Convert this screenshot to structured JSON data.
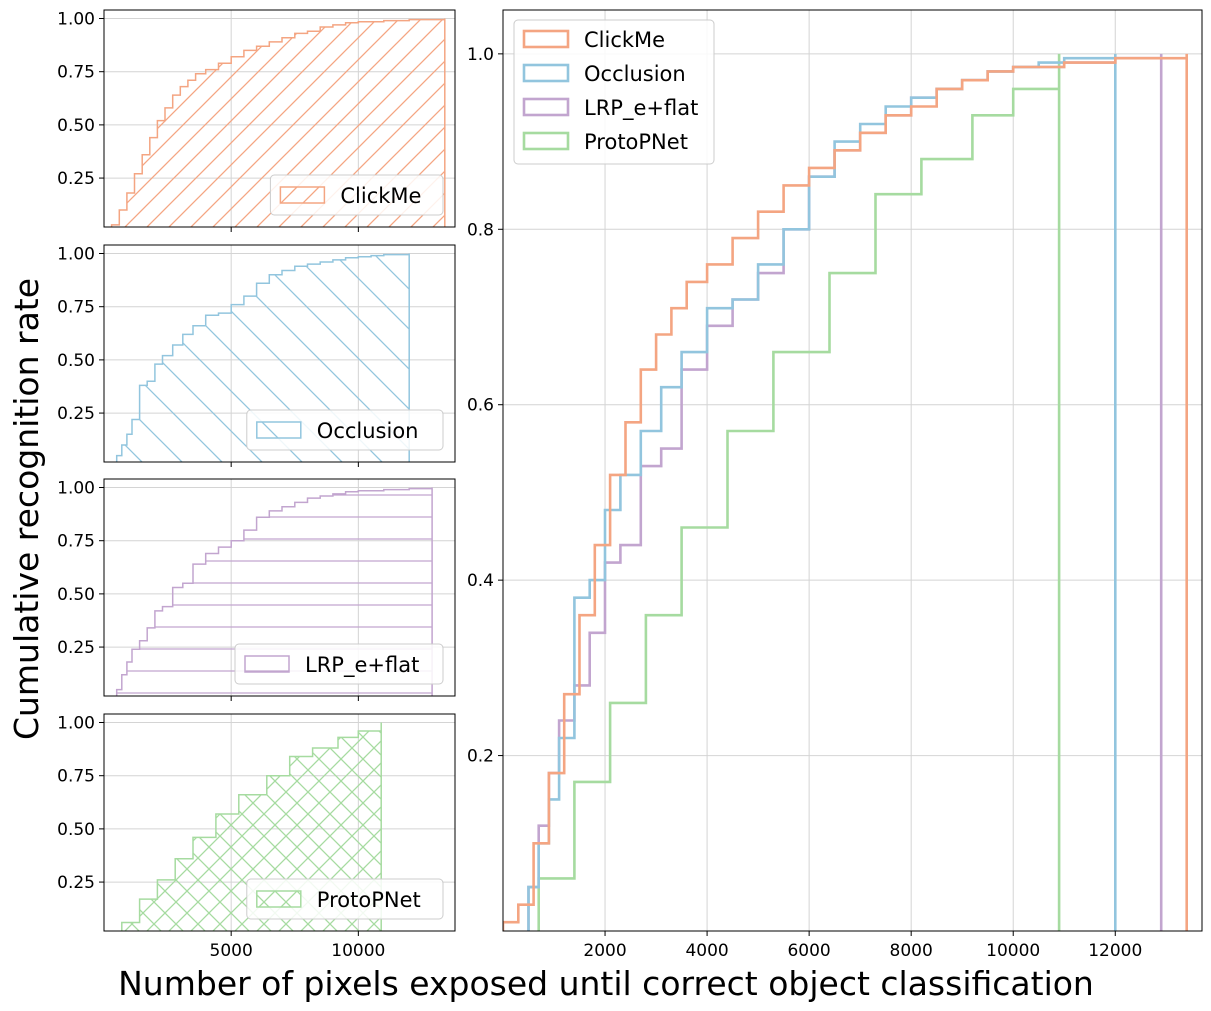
{
  "chart_data": {
    "type": "step",
    "ylabel": "Cumulative recognition rate",
    "xlabel": "Number of pixels exposed until correct object classification",
    "colors": {
      "ClickMe": "#F4A582",
      "Occlusion": "#92C5DE",
      "LRP_e+flat": "#C2A5CF",
      "ProtoPNet": "#A6DBA0"
    },
    "small_panels": {
      "xlim": [
        0,
        13800
      ],
      "ylim": [
        0.02,
        1.04
      ],
      "x_ticks": [
        5000,
        10000
      ],
      "x_tick_labels": [
        "5000",
        "10000"
      ],
      "y_ticks": [
        0.25,
        0.5,
        0.75,
        1.0
      ],
      "y_tick_labels": [
        "0.25",
        "0.50",
        "0.75",
        "1.00"
      ],
      "legend_position": "lower-right"
    },
    "main_panel": {
      "xlim": [
        0,
        13700
      ],
      "ylim": [
        0.0,
        1.05
      ],
      "x_ticks": [
        2000,
        4000,
        6000,
        8000,
        10000,
        12000
      ],
      "x_tick_labels": [
        "2000",
        "4000",
        "6000",
        "8000",
        "10000",
        "12000"
      ],
      "y_ticks": [
        0.2,
        0.4,
        0.6,
        0.8,
        1.0
      ],
      "y_tick_labels": [
        "0.2",
        "0.4",
        "0.6",
        "0.8",
        "1.0"
      ],
      "legend_position": "upper-left",
      "legend": [
        "ClickMe",
        "Occlusion",
        "LRP_e+flat",
        "ProtoPNet"
      ]
    },
    "series": [
      {
        "name": "ClickMe",
        "x": [
          0,
          300,
          600,
          900,
          1200,
          1500,
          1800,
          2100,
          2400,
          2700,
          3000,
          3300,
          3600,
          4000,
          4500,
          5000,
          5500,
          6000,
          6500,
          7000,
          7500,
          8000,
          8500,
          9000,
          9500,
          10000,
          11000,
          12000,
          13400
        ],
        "cum": [
          0.01,
          0.03,
          0.1,
          0.18,
          0.27,
          0.36,
          0.44,
          0.52,
          0.58,
          0.64,
          0.68,
          0.71,
          0.74,
          0.76,
          0.79,
          0.82,
          0.85,
          0.87,
          0.89,
          0.91,
          0.93,
          0.94,
          0.96,
          0.97,
          0.98,
          0.985,
          0.99,
          0.995,
          1.0
        ]
      },
      {
        "name": "Occlusion",
        "x": [
          500,
          700,
          900,
          1100,
          1400,
          1700,
          2000,
          2300,
          2700,
          3100,
          3500,
          4000,
          4500,
          5000,
          5500,
          6000,
          6500,
          7000,
          7500,
          8000,
          8500,
          9000,
          9500,
          10000,
          10500,
          11000,
          12000
        ],
        "cum": [
          0.05,
          0.1,
          0.15,
          0.22,
          0.38,
          0.4,
          0.48,
          0.52,
          0.57,
          0.62,
          0.66,
          0.71,
          0.72,
          0.76,
          0.8,
          0.86,
          0.9,
          0.92,
          0.94,
          0.95,
          0.96,
          0.97,
          0.98,
          0.985,
          0.99,
          0.995,
          1.0
        ]
      },
      {
        "name": "LRP_e+flat",
        "x": [
          500,
          700,
          900,
          1100,
          1400,
          1700,
          2000,
          2300,
          2700,
          3100,
          3500,
          4000,
          4500,
          5000,
          5500,
          6000,
          6500,
          7000,
          7500,
          8000,
          8500,
          9000,
          9500,
          10000,
          11000,
          12000,
          12900
        ],
        "cum": [
          0.05,
          0.12,
          0.18,
          0.24,
          0.28,
          0.34,
          0.42,
          0.44,
          0.53,
          0.55,
          0.64,
          0.69,
          0.72,
          0.75,
          0.8,
          0.86,
          0.89,
          0.91,
          0.93,
          0.95,
          0.96,
          0.97,
          0.98,
          0.985,
          0.99,
          0.995,
          1.0
        ]
      },
      {
        "name": "ProtoPNet",
        "x": [
          700,
          1400,
          2100,
          2800,
          3500,
          4400,
          5300,
          6400,
          7300,
          8200,
          9200,
          10000,
          10900
        ],
        "cum": [
          0.06,
          0.17,
          0.26,
          0.36,
          0.46,
          0.57,
          0.66,
          0.75,
          0.84,
          0.88,
          0.93,
          0.96,
          1.0
        ]
      }
    ]
  }
}
